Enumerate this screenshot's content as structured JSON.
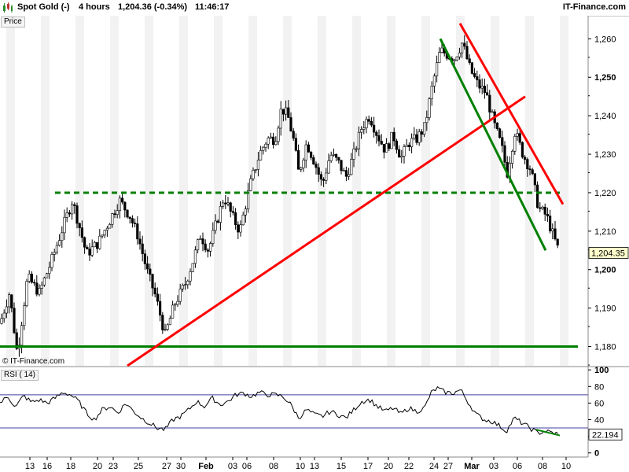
{
  "header": {
    "instrument": "Spot Gold (-)",
    "timeframe": "4 hours",
    "last_quote": "1,204.36 (-0.34%)",
    "time": "11:46:17",
    "brand": "IT-Finance.com"
  },
  "price_panel_label": "Price",
  "rsi_panel_label": "RSI ( 14)",
  "copyright": "© IT-Finance.com",
  "colors": {
    "candle_up": "#ffffff",
    "candle_down": "#000000",
    "trend_red": "#ff0000",
    "trend_green": "#008000",
    "grid_band": "#f2f2f2",
    "rsi_guide": "#4040a0"
  },
  "chart_data": [
    {
      "type": "candlestick",
      "panel": "price",
      "ylim": [
        1175,
        1266
      ],
      "y_ticks": [
        1180,
        1190,
        1200,
        1210,
        1220,
        1230,
        1240,
        1250,
        1260
      ],
      "y_tick_labels": [
        "1,180",
        "1,190",
        "1,200",
        "1,210",
        "1,220",
        "1,230",
        "1,240",
        "1,250",
        "1,260"
      ],
      "bold_ticks": [
        1200,
        1250
      ],
      "last_price": 1204.35,
      "last_price_label": "1,204.35",
      "x_tick_labels": [
        "13",
        "16",
        "18",
        "20",
        "23",
        "25",
        "27",
        "30",
        "Feb",
        "03",
        "06",
        "08",
        "10",
        "13",
        "15",
        "17",
        "20",
        "22",
        "24",
        "27",
        "Mar",
        "03",
        "06",
        "08",
        "10"
      ],
      "close_path": [
        [
          0,
          1186
        ],
        [
          12,
          1194
        ],
        [
          22,
          1178
        ],
        [
          35,
          1198
        ],
        [
          50,
          1194
        ],
        [
          65,
          1202
        ],
        [
          80,
          1211
        ],
        [
          92,
          1218
        ],
        [
          100,
          1212
        ],
        [
          110,
          1204
        ],
        [
          125,
          1207
        ],
        [
          140,
          1213
        ],
        [
          152,
          1218
        ],
        [
          165,
          1214
        ],
        [
          175,
          1209
        ],
        [
          188,
          1199
        ],
        [
          198,
          1193
        ],
        [
          210,
          1183
        ],
        [
          222,
          1191
        ],
        [
          235,
          1196
        ],
        [
          245,
          1202
        ],
        [
          255,
          1209
        ],
        [
          265,
          1205
        ],
        [
          275,
          1212
        ],
        [
          285,
          1219
        ],
        [
          295,
          1214
        ],
        [
          305,
          1210
        ],
        [
          318,
          1222
        ],
        [
          330,
          1230
        ],
        [
          340,
          1234
        ],
        [
          350,
          1234
        ],
        [
          358,
          1242
        ],
        [
          366,
          1240
        ],
        [
          373,
          1234
        ],
        [
          380,
          1225
        ],
        [
          390,
          1233
        ],
        [
          400,
          1228
        ],
        [
          410,
          1222
        ],
        [
          420,
          1230
        ],
        [
          430,
          1228
        ],
        [
          440,
          1224
        ],
        [
          450,
          1230
        ],
        [
          460,
          1237
        ],
        [
          470,
          1240
        ],
        [
          480,
          1235
        ],
        [
          490,
          1231
        ],
        [
          500,
          1235
        ],
        [
          510,
          1229
        ],
        [
          520,
          1233
        ],
        [
          530,
          1234
        ],
        [
          540,
          1237
        ],
        [
          550,
          1248
        ],
        [
          560,
          1257
        ],
        [
          568,
          1256
        ],
        [
          578,
          1255
        ],
        [
          588,
          1259
        ],
        [
          598,
          1252
        ],
        [
          608,
          1248
        ],
        [
          618,
          1246
        ],
        [
          628,
          1238
        ],
        [
          638,
          1232
        ],
        [
          645,
          1225
        ],
        [
          655,
          1236
        ],
        [
          665,
          1230
        ],
        [
          675,
          1226
        ],
        [
          685,
          1216
        ],
        [
          695,
          1214
        ],
        [
          705,
          1208
        ],
        [
          712,
          1204
        ]
      ],
      "horizontal_lines": [
        {
          "value": 1220,
          "color": "#008000",
          "style": "dashed",
          "from_x": 70,
          "to_x": 712
        },
        {
          "value": 1180,
          "color": "#008000",
          "style": "solid",
          "from_x": 0,
          "to_x": 735
        }
      ],
      "trend_lines": [
        {
          "color": "#ff0000",
          "points": [
            [
              162,
              1175
            ],
            [
              668,
              1245
            ]
          ]
        },
        {
          "color": "#ff0000",
          "points": [
            [
              585,
              1264
            ],
            [
              716,
              1217
            ]
          ]
        },
        {
          "color": "#008000",
          "points": [
            [
              560,
              1260
            ],
            [
              694,
              1205
            ]
          ]
        }
      ]
    },
    {
      "type": "line",
      "panel": "rsi",
      "name": "RSI ( 14)",
      "ylim": [
        -5,
        103
      ],
      "y_ticks": [
        0,
        20,
        40,
        60,
        80,
        100
      ],
      "y_tick_labels": [
        "0",
        "20",
        "40",
        "60",
        "80",
        "100"
      ],
      "reference_levels": [
        70,
        30
      ],
      "last_value": 22.194,
      "last_value_label": "22.194",
      "path": [
        [
          0,
          60
        ],
        [
          10,
          68
        ],
        [
          20,
          55
        ],
        [
          30,
          69
        ],
        [
          40,
          61
        ],
        [
          50,
          64
        ],
        [
          60,
          60
        ],
        [
          70,
          66
        ],
        [
          80,
          73
        ],
        [
          90,
          70
        ],
        [
          100,
          62
        ],
        [
          110,
          48
        ],
        [
          120,
          40
        ],
        [
          130,
          52
        ],
        [
          140,
          56
        ],
        [
          150,
          48
        ],
        [
          160,
          60
        ],
        [
          170,
          50
        ],
        [
          180,
          42
        ],
        [
          190,
          36
        ],
        [
          200,
          30
        ],
        [
          210,
          28
        ],
        [
          220,
          40
        ],
        [
          230,
          44
        ],
        [
          240,
          52
        ],
        [
          250,
          62
        ],
        [
          260,
          56
        ],
        [
          270,
          66
        ],
        [
          280,
          58
        ],
        [
          290,
          62
        ],
        [
          300,
          70
        ],
        [
          310,
          72
        ],
        [
          320,
          68
        ],
        [
          330,
          73
        ],
        [
          340,
          70
        ],
        [
          350,
          70
        ],
        [
          360,
          68
        ],
        [
          370,
          58
        ],
        [
          380,
          42
        ],
        [
          390,
          52
        ],
        [
          400,
          46
        ],
        [
          410,
          44
        ],
        [
          420,
          50
        ],
        [
          430,
          46
        ],
        [
          440,
          42
        ],
        [
          450,
          52
        ],
        [
          460,
          62
        ],
        [
          470,
          64
        ],
        [
          480,
          56
        ],
        [
          490,
          50
        ],
        [
          500,
          54
        ],
        [
          510,
          47
        ],
        [
          520,
          54
        ],
        [
          530,
          50
        ],
        [
          540,
          54
        ],
        [
          548,
          72
        ],
        [
          556,
          78
        ],
        [
          566,
          73
        ],
        [
          576,
          72
        ],
        [
          586,
          76
        ],
        [
          596,
          60
        ],
        [
          606,
          46
        ],
        [
          616,
          40
        ],
        [
          626,
          38
        ],
        [
          636,
          32
        ],
        [
          644,
          26
        ],
        [
          654,
          42
        ],
        [
          664,
          36
        ],
        [
          674,
          30
        ],
        [
          684,
          24
        ],
        [
          694,
          26
        ],
        [
          704,
          24
        ],
        [
          712,
          22
        ]
      ],
      "trend_lines": [
        {
          "color": "#008000",
          "points": [
            [
              682,
              28
            ],
            [
              712,
              21
            ]
          ]
        }
      ]
    }
  ]
}
